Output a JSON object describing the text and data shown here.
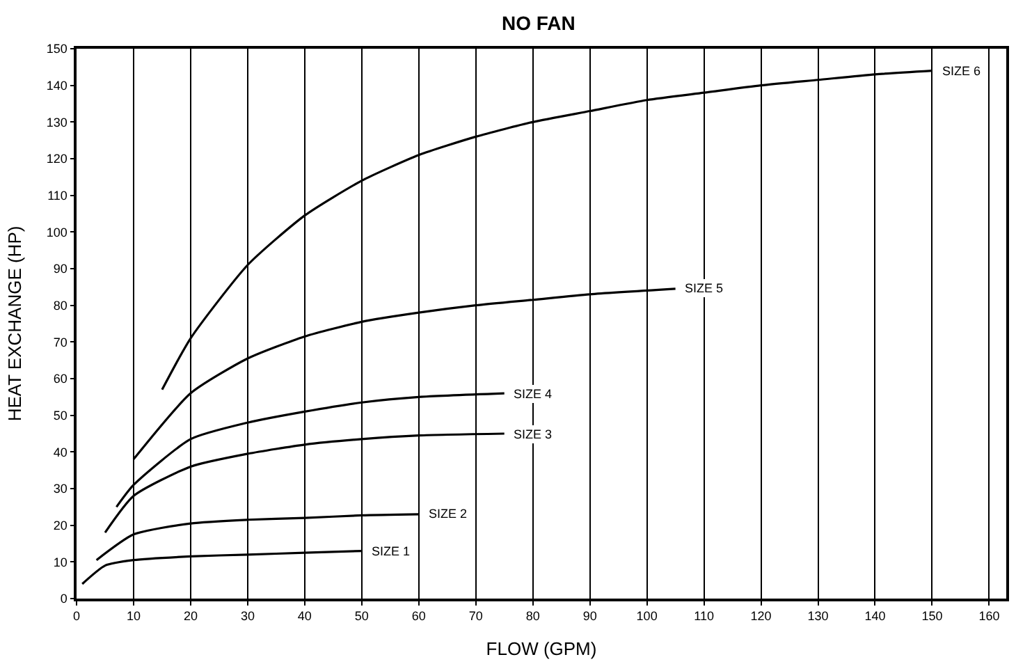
{
  "chart_data": {
    "type": "line",
    "title": "NO FAN",
    "xlabel": "FLOW (GPM)",
    "ylabel": "HEAT EXCHANGE (HP)",
    "xlim": [
      0,
      163
    ],
    "xticks": [
      0,
      10,
      20,
      30,
      40,
      50,
      60,
      70,
      80,
      90,
      100,
      110,
      120,
      130,
      140,
      150,
      160
    ],
    "ylim": [
      0,
      150
    ],
    "yticks": [
      0,
      10,
      20,
      30,
      40,
      50,
      60,
      70,
      80,
      90,
      100,
      110,
      120,
      130,
      140,
      150
    ],
    "grid": "x",
    "legend": false,
    "marker": "none",
    "line_style": "solid",
    "series": [
      {
        "name": "SIZE 1",
        "color": "#000000",
        "x": [
          1,
          5,
          10,
          20,
          30,
          40,
          50
        ],
        "values": [
          4,
          9,
          10.5,
          11.5,
          12,
          12.5,
          13
        ]
      },
      {
        "name": "SIZE 2",
        "color": "#000000",
        "x": [
          3.5,
          10,
          20,
          30,
          40,
          50,
          60
        ],
        "values": [
          10.5,
          17.5,
          20.5,
          21.5,
          22,
          22.7,
          23
        ]
      },
      {
        "name": "SIZE 3",
        "color": "#000000",
        "x": [
          5,
          10,
          20,
          30,
          40,
          50,
          60,
          75
        ],
        "values": [
          18,
          28,
          36,
          39.5,
          42,
          43.5,
          44.5,
          45
        ]
      },
      {
        "name": "SIZE 4",
        "color": "#000000",
        "x": [
          7,
          10,
          20,
          30,
          40,
          50,
          60,
          75
        ],
        "values": [
          25,
          31,
          43.5,
          48,
          51,
          53.5,
          55,
          56
        ]
      },
      {
        "name": "SIZE 5",
        "color": "#000000",
        "x": [
          10,
          20,
          30,
          40,
          50,
          60,
          70,
          80,
          90,
          105
        ],
        "values": [
          38,
          56,
          65.5,
          71.5,
          75.5,
          78,
          80,
          81.5,
          83,
          84.5
        ]
      },
      {
        "name": "SIZE 6",
        "color": "#000000",
        "x": [
          15,
          20,
          30,
          40,
          50,
          60,
          70,
          80,
          90,
          100,
          110,
          120,
          130,
          140,
          150
        ],
        "values": [
          57,
          71,
          91,
          104.5,
          114,
          121,
          126,
          130,
          133,
          136,
          138,
          140,
          141.5,
          143,
          144
        ]
      }
    ]
  }
}
